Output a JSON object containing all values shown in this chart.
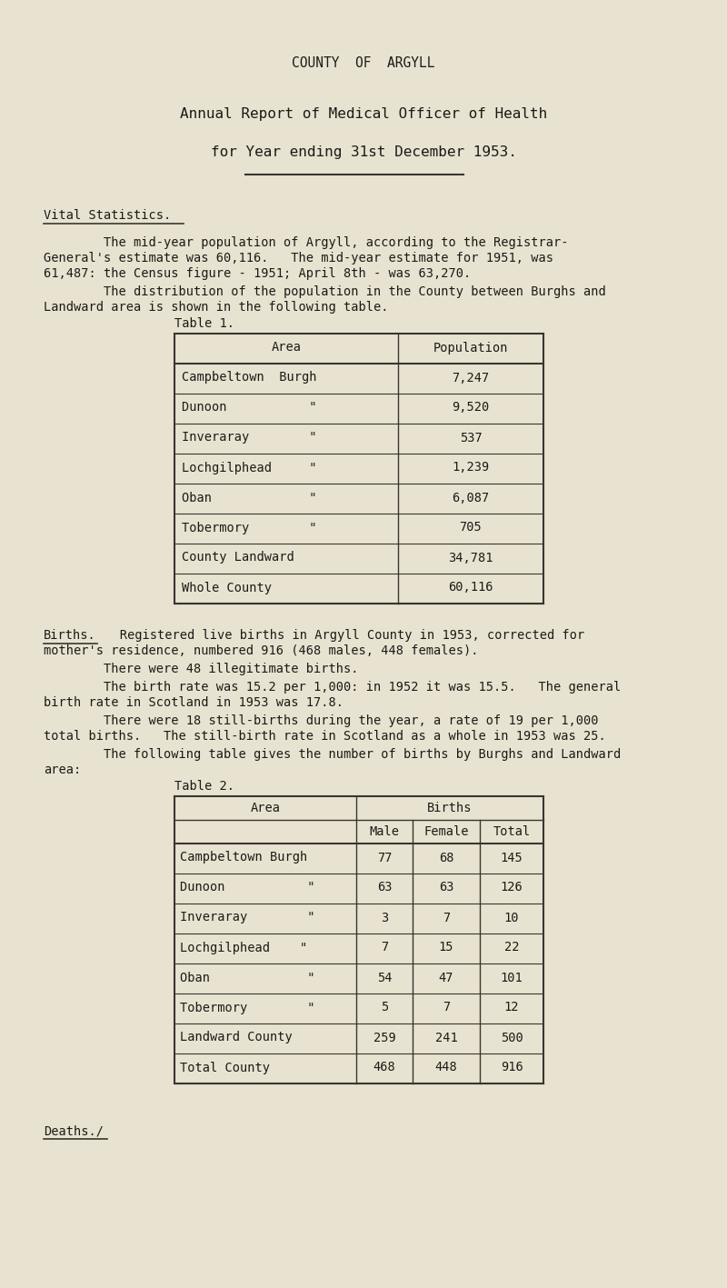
{
  "bg_color": "#e8e3d0",
  "title_line1": "COUNTY  OF  ARGYLL",
  "title_line2": "Annual Report of Medical Officer of Health",
  "title_line3": "for Year ending 31st December 1953.",
  "section_header": "Vital Statistics.",
  "para1_indent": "        The mid-year population of Argyll, according to the Registrar-",
  "para1_line2": "General's estimate was 60,116.   The mid-year estimate for 1951, was",
  "para1_line3": "61,487: the Census figure - 1951; April 8th - was 63,270.",
  "para2_indent": "        The distribution of the population in the County between Burghs and",
  "para2_line2": "Landward area is shown in the following table.",
  "table1_label": "Table 1.",
  "table1_header_area": "Area",
  "table1_header_pop": "Population",
  "table1_rows": [
    [
      "Campbeltown  Burgh",
      "7,247"
    ],
    [
      "Dunoon           \"",
      "9,520"
    ],
    [
      "Inveraray        \"",
      "537"
    ],
    [
      "Lochgilphead     \"",
      "1,239"
    ],
    [
      "Oban             \"",
      "6,087"
    ],
    [
      "Tobermory        \"",
      "705"
    ],
    [
      "County Landward",
      "34,781"
    ],
    [
      "Whole County",
      "60,116"
    ]
  ],
  "births_word": "Births.",
  "births_rest": "   Registered live births in Argyll County in 1953, corrected for",
  "births_line2": "mother's residence, numbered 916 (468 males, 448 females).",
  "births_para2": "        There were 48 illegitimate births.",
  "births_para3a": "        The birth rate was 15.2 per 1,000: in 1952 it was 15.5.   The general",
  "births_para3b": "birth rate in Scotland in 1953 was 17.8.",
  "births_para4a": "        There were 18 still-births during the year, a rate of 19 per 1,000",
  "births_para4b": "total births.   The still-birth rate in Scotland as a whole in 1953 was 25.",
  "births_para5a": "        The following table gives the number of births by Burghs and Landward",
  "births_para5b": "area:",
  "table2_label": "Table 2.",
  "table2_rows": [
    [
      "Campbeltown Burgh",
      "77",
      "68",
      "145"
    ],
    [
      "Dunoon           \"",
      "63",
      "63",
      "126"
    ],
    [
      "Inveraray        \"",
      "3",
      "7",
      "10"
    ],
    [
      "Lochgilphead    \"",
      "7",
      "15",
      "22"
    ],
    [
      "Oban             \"",
      "54",
      "47",
      "101"
    ],
    [
      "Tobermory        \"",
      "5",
      "7",
      "12"
    ],
    [
      "Landward County",
      "259",
      "241",
      "500"
    ],
    [
      "Total County",
      "468",
      "448",
      "916"
    ]
  ],
  "deaths_text": "Deaths./",
  "font_family": "monospace",
  "text_color": "#1c1a18",
  "line_color": "#3a3530"
}
